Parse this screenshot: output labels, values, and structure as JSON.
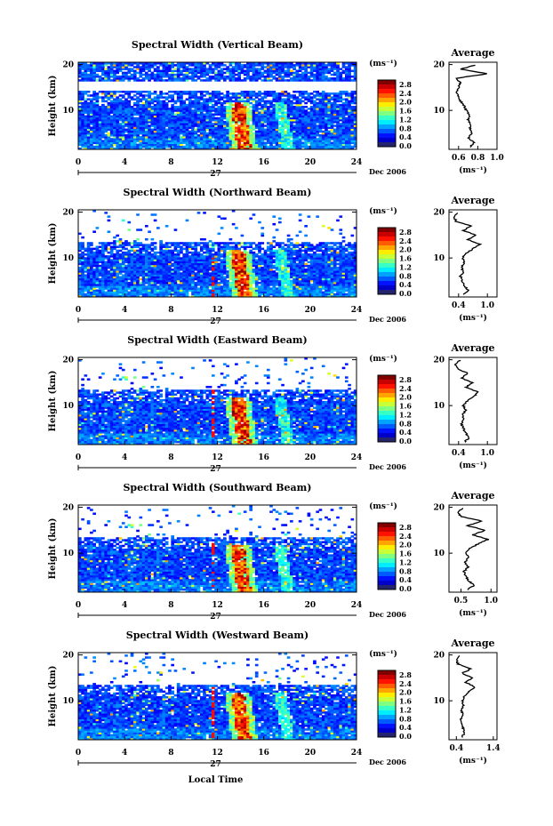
{
  "figure": {
    "y_axis_label": "Height (km)",
    "x_axis_label": "Local Time",
    "date_label": "Dec 2006",
    "day_label": "27",
    "average_title": "Average",
    "unit_label": "(ms⁻¹)",
    "colorbar_ticks": [
      "2.8",
      "2.4",
      "2.0",
      "1.6",
      "1.2",
      "0.8",
      "0.4",
      "0.0"
    ]
  },
  "chart_data": [
    {
      "type": "heatmap",
      "title": "Spectral Width (Vertical Beam)",
      "xlabel": "",
      "ylabel": "Height (km)",
      "xlim": [
        0,
        24
      ],
      "ylim": [
        1.5,
        20.5
      ],
      "x_ticks": [
        0,
        4,
        8,
        12,
        16,
        20,
        24
      ],
      "y_ticks": [
        10,
        20
      ],
      "colorbar": {
        "label": "(ms⁻¹)",
        "range": [
          0.0,
          3.0
        ],
        "ticks": [
          0.0,
          0.4,
          0.8,
          1.2,
          1.6,
          2.0,
          2.4,
          2.8
        ]
      },
      "average_profile": {
        "title": "Average",
        "xlim": [
          0.5,
          1.0
        ],
        "x_ticks": [
          0.6,
          0.8,
          1.0
        ],
        "x_tick_labels": [
          "0.6",
          "0.8",
          "1.0"
        ],
        "xlabel": "(ms⁻¹)",
        "height_km": [
          2,
          3,
          4,
          5,
          6,
          7,
          8,
          9,
          10,
          11,
          12,
          13,
          14,
          15,
          16,
          17,
          18,
          19,
          20
        ],
        "values": [
          0.72,
          0.76,
          0.7,
          0.74,
          0.72,
          0.73,
          0.7,
          0.71,
          0.68,
          0.66,
          0.62,
          0.6,
          0.58,
          0.6,
          0.62,
          0.58,
          0.9,
          0.62,
          0.8
        ]
      },
      "gap_km": [
        14.5,
        16.5
      ]
    },
    {
      "type": "heatmap",
      "title": "Spectral Width (Northward Beam)",
      "xlabel": "",
      "ylabel": "Height (km)",
      "xlim": [
        0,
        24
      ],
      "ylim": [
        1.5,
        20.5
      ],
      "x_ticks": [
        0,
        4,
        8,
        12,
        16,
        20,
        24
      ],
      "y_ticks": [
        10,
        20
      ],
      "colorbar": {
        "label": "(ms⁻¹)",
        "range": [
          0.0,
          3.0
        ],
        "ticks": [
          0.0,
          0.4,
          0.8,
          1.2,
          1.6,
          2.0,
          2.4,
          2.8
        ]
      },
      "average_profile": {
        "title": "Average",
        "xlim": [
          0.2,
          1.2
        ],
        "x_ticks": [
          0.4,
          1.0
        ],
        "x_tick_labels": [
          "0.4",
          "1.0"
        ],
        "xlabel": "(ms⁻¹)",
        "height_km": [
          2,
          3,
          4,
          5,
          6,
          7,
          8,
          9,
          10,
          11,
          12,
          13,
          14,
          15,
          16,
          17,
          18,
          19,
          20
        ],
        "values": [
          0.5,
          0.6,
          0.52,
          0.48,
          0.44,
          0.5,
          0.46,
          0.52,
          0.48,
          0.55,
          0.7,
          0.85,
          0.6,
          0.75,
          0.5,
          0.65,
          0.35,
          0.3,
          0.4
        ]
      },
      "gap_km": [
        13.5,
        16.5
      ]
    },
    {
      "type": "heatmap",
      "title": "Spectral Width (Eastward Beam)",
      "xlabel": "",
      "ylabel": "Height (km)",
      "xlim": [
        0,
        24
      ],
      "ylim": [
        1.5,
        20.5
      ],
      "x_ticks": [
        0,
        4,
        8,
        12,
        16,
        20,
        24
      ],
      "y_ticks": [
        10,
        20
      ],
      "colorbar": {
        "label": "(ms⁻¹)",
        "range": [
          0.0,
          3.0
        ],
        "ticks": [
          0.0,
          0.4,
          0.8,
          1.2,
          1.6,
          2.0,
          2.4,
          2.8
        ]
      },
      "average_profile": {
        "title": "Average",
        "xlim": [
          0.2,
          1.2
        ],
        "x_ticks": [
          0.4,
          1.0
        ],
        "x_tick_labels": [
          "0.4",
          "1.0"
        ],
        "xlabel": "(ms⁻¹)",
        "height_km": [
          2,
          3,
          4,
          5,
          6,
          7,
          8,
          9,
          10,
          11,
          12,
          13,
          14,
          15,
          16,
          17,
          18,
          19,
          20
        ],
        "values": [
          0.52,
          0.62,
          0.55,
          0.5,
          0.46,
          0.5,
          0.48,
          0.55,
          0.5,
          0.58,
          0.72,
          0.8,
          0.55,
          0.7,
          0.45,
          0.6,
          0.38,
          0.32,
          0.45
        ]
      },
      "gap_km": [
        13.5,
        16.5
      ]
    },
    {
      "type": "heatmap",
      "title": "Spectral Width (Southward Beam)",
      "xlabel": "",
      "ylabel": "Height (km)",
      "xlim": [
        0,
        24
      ],
      "ylim": [
        1.5,
        20.5
      ],
      "x_ticks": [
        0,
        4,
        8,
        12,
        16,
        20,
        24
      ],
      "y_ticks": [
        10,
        20
      ],
      "colorbar": {
        "label": "(ms⁻¹)",
        "range": [
          0.0,
          3.0
        ],
        "ticks": [
          0.0,
          0.4,
          0.8,
          1.2,
          1.6,
          2.0,
          2.4,
          2.8
        ]
      },
      "average_profile": {
        "title": "Average",
        "xlim": [
          0.3,
          1.1
        ],
        "x_ticks": [
          0.5,
          1.0
        ],
        "x_tick_labels": [
          "0.5",
          "1.0"
        ],
        "xlabel": "(ms⁻¹)",
        "height_km": [
          2,
          3,
          4,
          5,
          6,
          7,
          8,
          9,
          10,
          11,
          12,
          13,
          14,
          15,
          16,
          17,
          18,
          19,
          20
        ],
        "values": [
          0.6,
          0.72,
          0.62,
          0.58,
          0.55,
          0.62,
          0.56,
          0.62,
          0.58,
          0.65,
          0.78,
          0.95,
          0.7,
          0.9,
          0.6,
          0.85,
          0.5,
          0.45,
          0.55
        ]
      },
      "gap_km": [
        13.5,
        16.5
      ]
    },
    {
      "type": "heatmap",
      "title": "Spectral Width (Westward Beam)",
      "xlabel": "Local Time",
      "ylabel": "Height (km)",
      "xlim": [
        0,
        24
      ],
      "ylim": [
        1.5,
        20.5
      ],
      "x_ticks": [
        0,
        4,
        8,
        12,
        16,
        20,
        24
      ],
      "y_ticks": [
        10,
        20
      ],
      "colorbar": {
        "label": "(ms⁻¹)",
        "range": [
          0.0,
          3.0
        ],
        "ticks": [
          0.0,
          0.4,
          0.8,
          1.2,
          1.6,
          2.0,
          2.4,
          2.8
        ]
      },
      "average_profile": {
        "title": "Average",
        "xlim": [
          0.2,
          1.5
        ],
        "x_ticks": [
          0.4,
          1.4
        ],
        "x_tick_labels": [
          "0.4",
          "1.4"
        ],
        "xlabel": "(ms⁻¹)",
        "height_km": [
          2,
          3,
          4,
          5,
          6,
          7,
          8,
          9,
          10,
          11,
          12,
          13,
          14,
          15,
          16,
          17,
          18,
          19,
          20
        ],
        "values": [
          0.55,
          0.62,
          0.58,
          0.56,
          0.52,
          0.58,
          0.54,
          0.6,
          0.56,
          0.62,
          0.75,
          0.9,
          0.65,
          0.85,
          0.55,
          0.8,
          0.45,
          0.4,
          0.5
        ]
      },
      "gap_km": [
        13.5,
        16.5
      ]
    }
  ]
}
